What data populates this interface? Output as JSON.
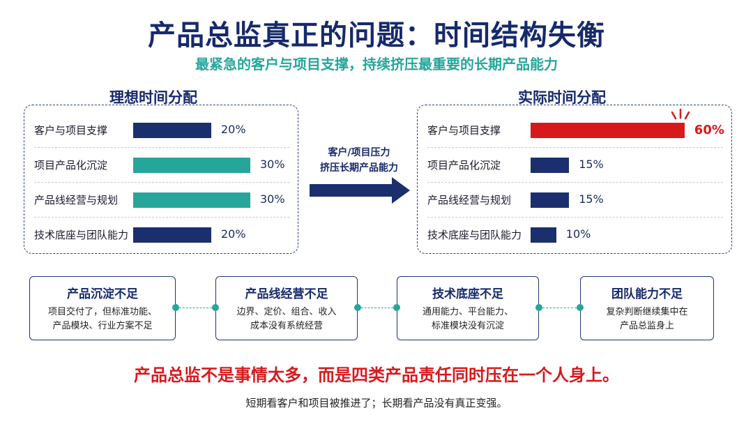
{
  "title": "产品总监真正的问题：时间结构失衡",
  "subtitle": "最紧急的客户与项目支撑，持续挤压最重要的长期产品能力",
  "ideal": {
    "title": "理想时间分配",
    "rows": [
      {
        "label": "客户与项目支撑",
        "value": "20%",
        "pct": 20,
        "color": "#1b2f6e"
      },
      {
        "label": "项目产品化沉淀",
        "value": "30%",
        "pct": 30,
        "color": "#26a69a"
      },
      {
        "label": "产品线经营与规划",
        "value": "30%",
        "pct": 30,
        "color": "#26a69a"
      },
      {
        "label": "技术底座与团队能力",
        "value": "20%",
        "pct": 20,
        "color": "#1b2f6e"
      }
    ]
  },
  "arrow": {
    "line1": "客户/项目压力",
    "line2": "挤压长期产品能力",
    "color": "#1b2f6e"
  },
  "actual": {
    "title": "实际时间分配",
    "rows": [
      {
        "label": "客户与项目支撑",
        "value": "60%",
        "pct": 60,
        "color": "#d7191c",
        "value_color": "#d7191c"
      },
      {
        "label": "项目产品化沉淀",
        "value": "15%",
        "pct": 15,
        "color": "#1b2f6e",
        "value_color": "#1a2a5c"
      },
      {
        "label": "产品线经营与规划",
        "value": "15%",
        "pct": 15,
        "color": "#1b2f6e",
        "value_color": "#1a2a5c"
      },
      {
        "label": "技术底座与团队能力",
        "value": "10%",
        "pct": 10,
        "color": "#1b2f6e",
        "value_color": "#1a2a5c"
      }
    ]
  },
  "cards": [
    {
      "title": "产品沉淀不足",
      "line1": "项目交付了，但标准功能、",
      "line2": "产品模块、行业方案不足"
    },
    {
      "title": "产品线经营不足",
      "line1": "边界、定价、组合、收入",
      "line2": "成本没有系统经营"
    },
    {
      "title": "技术底座不足",
      "line1": "通用能力、平台能力、",
      "line2": "标准模块没有沉淀"
    },
    {
      "title": "团队能力不足",
      "line1": "复杂判断继续集中在",
      "line2": "产品总监身上"
    }
  ],
  "conclusion": "产品总监不是事情太多，而是四类产品责任同时压在一个人身上。",
  "note": "短期看客户和项目被推进了；长期看产品没有真正变强。"
}
